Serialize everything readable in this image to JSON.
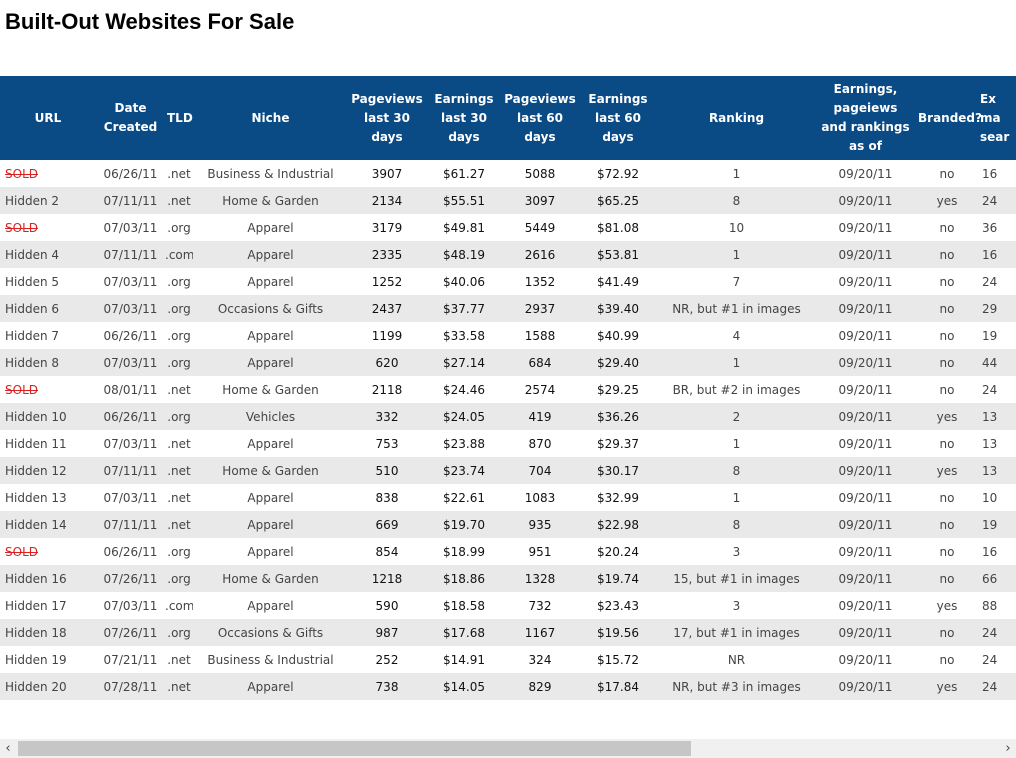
{
  "page": {
    "title": "Built-Out Websites For Sale"
  },
  "table": {
    "headers": [
      [
        "URL"
      ],
      [
        "Date",
        "Created"
      ],
      [
        "TLD"
      ],
      [
        "Niche"
      ],
      [
        "Pageviews",
        "last 30",
        "days"
      ],
      [
        "Earnings",
        "last 30",
        "days"
      ],
      [
        "Pageviews",
        "last 60",
        "days"
      ],
      [
        "Earnings",
        "last 60",
        "days"
      ],
      [
        "Ranking"
      ],
      [
        "Earnings,",
        "pageiews",
        "and rankings",
        "as of"
      ],
      [
        "Branded?"
      ],
      [
        "Ex",
        "ma",
        "sear"
      ]
    ],
    "rows": [
      {
        "url": "SOLD",
        "sold": true,
        "date": "06/26/11",
        "tld": ".net",
        "niche": "Business & Industrial",
        "pv30": "3907",
        "earn30": "$61.27",
        "pv60": "5088",
        "earn60": "$72.92",
        "ranking": "1",
        "asof": "09/20/11",
        "branded": "no",
        "last": "16"
      },
      {
        "url": "Hidden 2",
        "sold": false,
        "date": "07/11/11",
        "tld": ".net",
        "niche": "Home & Garden",
        "pv30": "2134",
        "earn30": "$55.51",
        "pv60": "3097",
        "earn60": "$65.25",
        "ranking": "8",
        "asof": "09/20/11",
        "branded": "yes",
        "last": "24"
      },
      {
        "url": "SOLD",
        "sold": true,
        "date": "07/03/11",
        "tld": ".org",
        "niche": "Apparel",
        "pv30": "3179",
        "earn30": "$49.81",
        "pv60": "5449",
        "earn60": "$81.08",
        "ranking": "10",
        "asof": "09/20/11",
        "branded": "no",
        "last": "36"
      },
      {
        "url": "Hidden 4",
        "sold": false,
        "date": "07/11/11",
        "tld": ".com",
        "niche": "Apparel",
        "pv30": "2335",
        "earn30": "$48.19",
        "pv60": "2616",
        "earn60": "$53.81",
        "ranking": "1",
        "asof": "09/20/11",
        "branded": "no",
        "last": "16"
      },
      {
        "url": "Hidden 5",
        "sold": false,
        "date": "07/03/11",
        "tld": ".org",
        "niche": "Apparel",
        "pv30": "1252",
        "earn30": "$40.06",
        "pv60": "1352",
        "earn60": "$41.49",
        "ranking": "7",
        "asof": "09/20/11",
        "branded": "no",
        "last": "24"
      },
      {
        "url": "Hidden 6",
        "sold": false,
        "date": "07/03/11",
        "tld": ".org",
        "niche": "Occasions & Gifts",
        "pv30": "2437",
        "earn30": "$37.77",
        "pv60": "2937",
        "earn60": "$39.40",
        "ranking": "NR, but #1 in images",
        "asof": "09/20/11",
        "branded": "no",
        "last": "29"
      },
      {
        "url": "Hidden 7",
        "sold": false,
        "date": "06/26/11",
        "tld": ".org",
        "niche": "Apparel",
        "pv30": "1199",
        "earn30": "$33.58",
        "pv60": "1588",
        "earn60": "$40.99",
        "ranking": "4",
        "asof": "09/20/11",
        "branded": "no",
        "last": "19"
      },
      {
        "url": "Hidden 8",
        "sold": false,
        "date": "07/03/11",
        "tld": ".org",
        "niche": "Apparel",
        "pv30": "620",
        "earn30": "$27.14",
        "pv60": "684",
        "earn60": "$29.40",
        "ranking": "1",
        "asof": "09/20/11",
        "branded": "no",
        "last": "44"
      },
      {
        "url": "SOLD",
        "sold": true,
        "date": "08/01/11",
        "tld": ".net",
        "niche": "Home & Garden",
        "pv30": "2118",
        "earn30": "$24.46",
        "pv60": "2574",
        "earn60": "$29.25",
        "ranking": "BR, but #2 in images",
        "asof": "09/20/11",
        "branded": "no",
        "last": "24"
      },
      {
        "url": "Hidden 10",
        "sold": false,
        "date": "06/26/11",
        "tld": ".org",
        "niche": "Vehicles",
        "pv30": "332",
        "earn30": "$24.05",
        "pv60": "419",
        "earn60": "$36.26",
        "ranking": "2",
        "asof": "09/20/11",
        "branded": "yes",
        "last": "13"
      },
      {
        "url": "Hidden 11",
        "sold": false,
        "date": "07/03/11",
        "tld": ".net",
        "niche": "Apparel",
        "pv30": "753",
        "earn30": "$23.88",
        "pv60": "870",
        "earn60": "$29.37",
        "ranking": "1",
        "asof": "09/20/11",
        "branded": "no",
        "last": "13"
      },
      {
        "url": "Hidden 12",
        "sold": false,
        "date": "07/11/11",
        "tld": ".net",
        "niche": "Home & Garden",
        "pv30": "510",
        "earn30": "$23.74",
        "pv60": "704",
        "earn60": "$30.17",
        "ranking": "8",
        "asof": "09/20/11",
        "branded": "yes",
        "last": "13"
      },
      {
        "url": "Hidden 13",
        "sold": false,
        "date": "07/03/11",
        "tld": ".net",
        "niche": "Apparel",
        "pv30": "838",
        "earn30": "$22.61",
        "pv60": "1083",
        "earn60": "$32.99",
        "ranking": "1",
        "asof": "09/20/11",
        "branded": "no",
        "last": "10"
      },
      {
        "url": "Hidden 14",
        "sold": false,
        "date": "07/11/11",
        "tld": ".net",
        "niche": "Apparel",
        "pv30": "669",
        "earn30": "$19.70",
        "pv60": "935",
        "earn60": "$22.98",
        "ranking": "8",
        "asof": "09/20/11",
        "branded": "no",
        "last": "19"
      },
      {
        "url": "SOLD",
        "sold": true,
        "date": "06/26/11",
        "tld": ".org",
        "niche": "Apparel",
        "pv30": "854",
        "earn30": "$18.99",
        "pv60": "951",
        "earn60": "$20.24",
        "ranking": "3",
        "asof": "09/20/11",
        "branded": "no",
        "last": "16"
      },
      {
        "url": "Hidden 16",
        "sold": false,
        "date": "07/26/11",
        "tld": ".org",
        "niche": "Home & Garden",
        "pv30": "1218",
        "earn30": "$18.86",
        "pv60": "1328",
        "earn60": "$19.74",
        "ranking": "15, but #1 in images",
        "asof": "09/20/11",
        "branded": "no",
        "last": "66"
      },
      {
        "url": "Hidden 17",
        "sold": false,
        "date": "07/03/11",
        "tld": ".com",
        "niche": "Apparel",
        "pv30": "590",
        "earn30": "$18.58",
        "pv60": "732",
        "earn60": "$23.43",
        "ranking": "3",
        "asof": "09/20/11",
        "branded": "yes",
        "last": "88"
      },
      {
        "url": "Hidden 18",
        "sold": false,
        "date": "07/26/11",
        "tld": ".org",
        "niche": "Occasions & Gifts",
        "pv30": "987",
        "earn30": "$17.68",
        "pv60": "1167",
        "earn60": "$19.56",
        "ranking": "17, but #1 in images",
        "asof": "09/20/11",
        "branded": "no",
        "last": "24"
      },
      {
        "url": "Hidden 19",
        "sold": false,
        "date": "07/21/11",
        "tld": ".net",
        "niche": "Business & Industrial",
        "pv30": "252",
        "earn30": "$14.91",
        "pv60": "324",
        "earn60": "$15.72",
        "ranking": "NR",
        "asof": "09/20/11",
        "branded": "no",
        "last": "24"
      },
      {
        "url": "Hidden 20",
        "sold": false,
        "date": "07/28/11",
        "tld": ".net",
        "niche": "Apparel",
        "pv30": "738",
        "earn30": "$14.05",
        "pv60": "829",
        "earn60": "$17.84",
        "ranking": "NR, but #3 in images",
        "asof": "09/20/11",
        "branded": "yes",
        "last": "24"
      }
    ]
  },
  "scrollbar": {
    "left_icon": "chevron-left-icon",
    "left_glyph": "‹",
    "right_icon": "chevron-right-icon",
    "right_glyph": "›",
    "visible_fraction": 0.68
  },
  "colors": {
    "header_bg": "#0a4a85",
    "alt_row_bg": "#e9e9e9",
    "sold_red": "#dd2222"
  }
}
